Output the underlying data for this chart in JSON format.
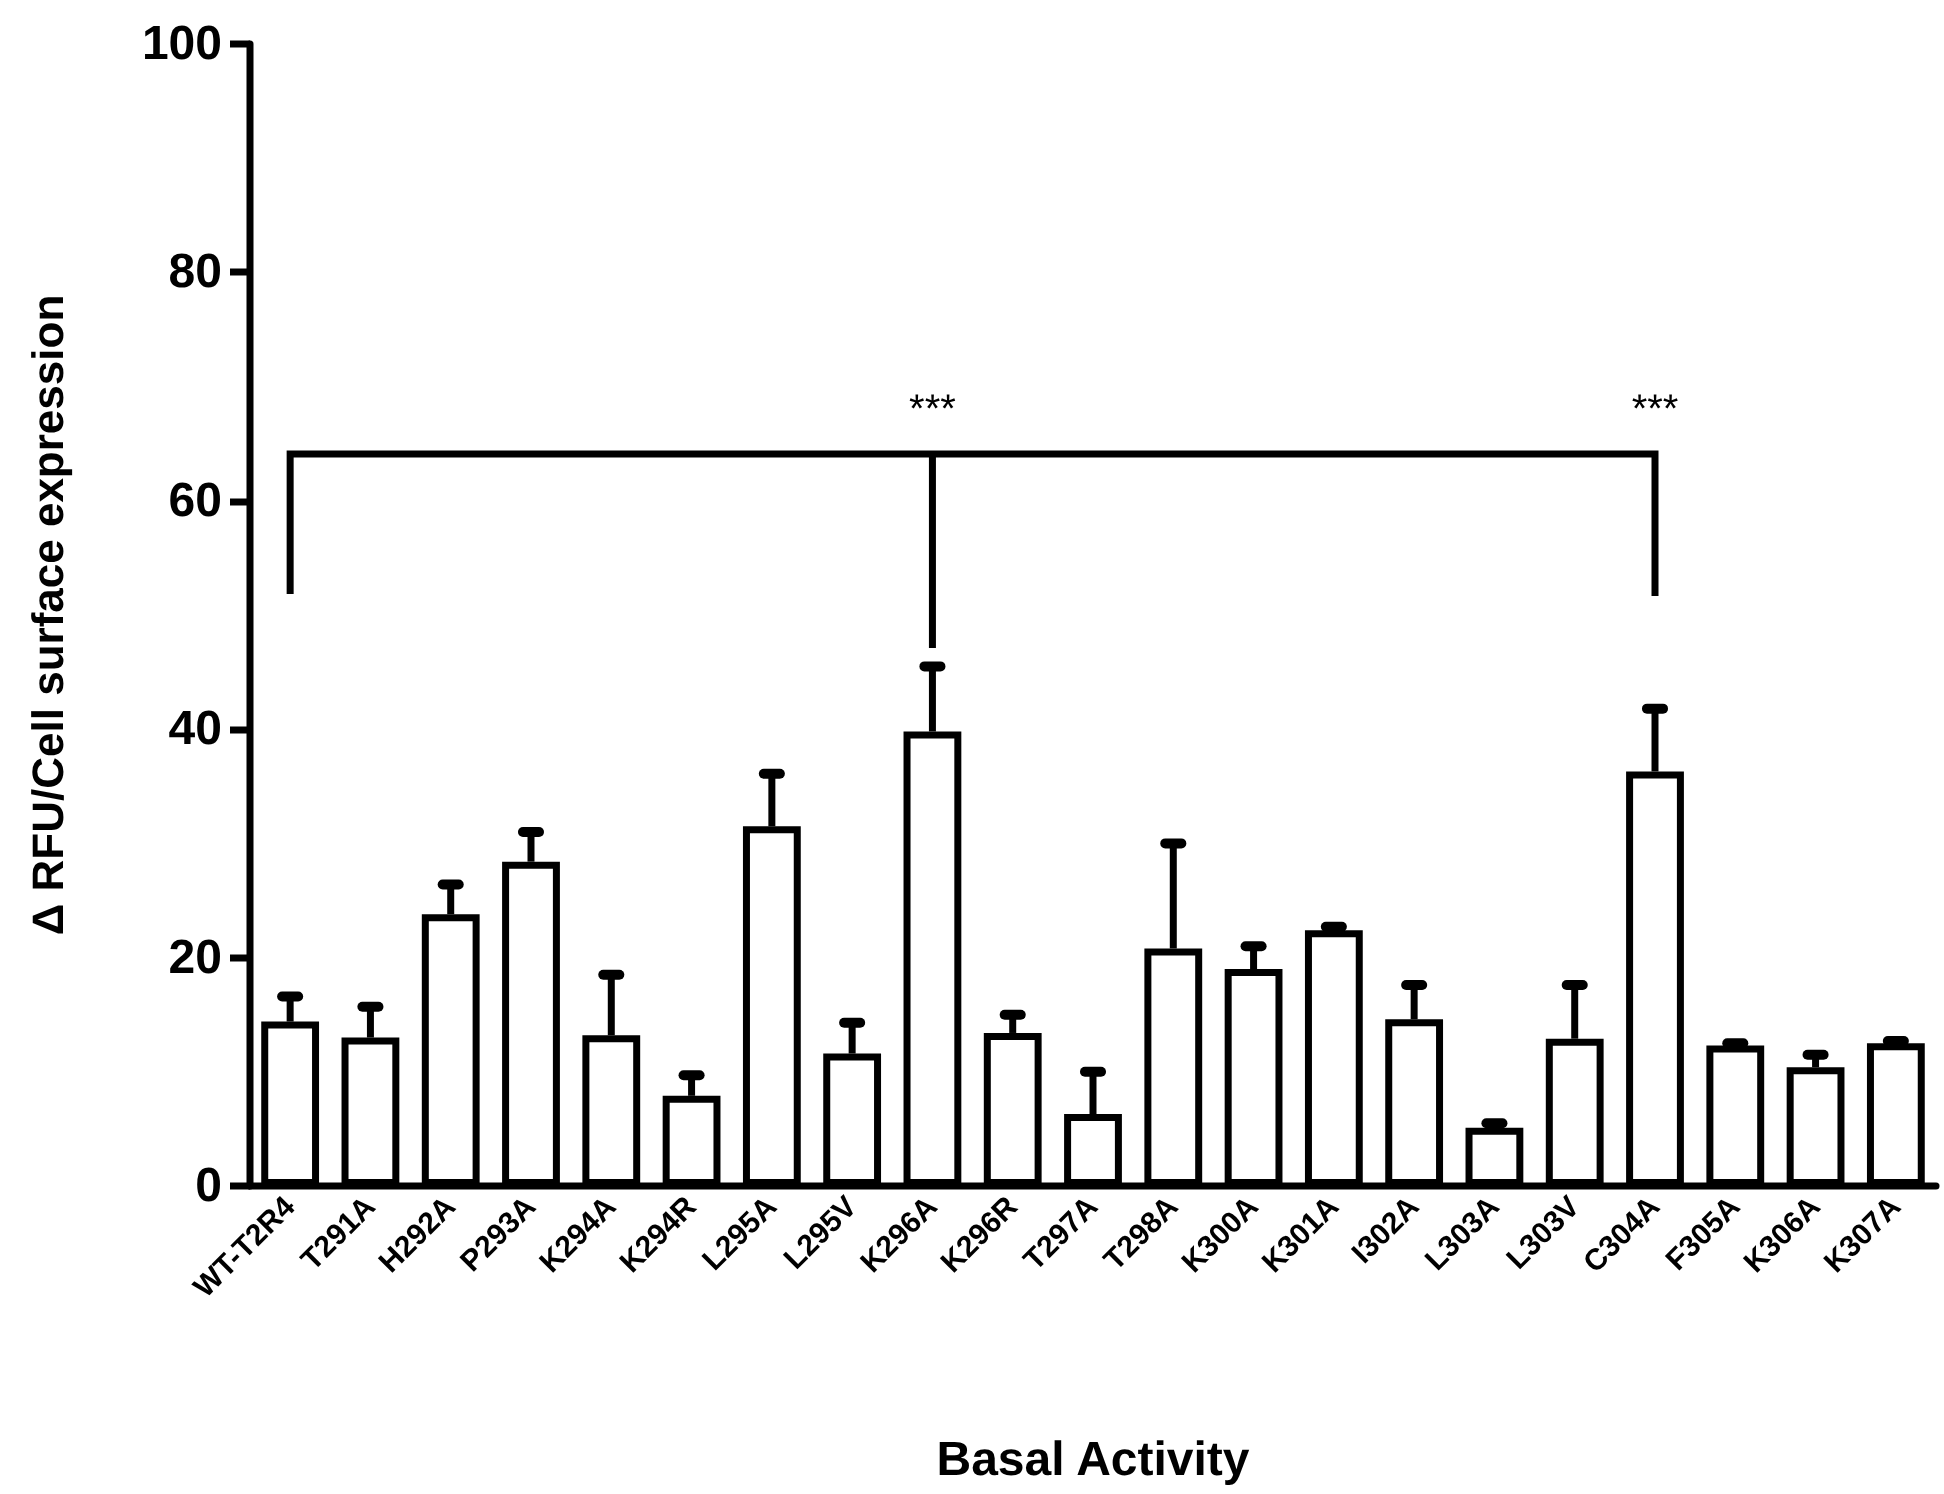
{
  "chart_data": {
    "type": "bar",
    "xlabel": "Basal Activity",
    "ylabel": "Δ RFU/Cell surface expression",
    "categories": [
      "WT-T2R4",
      "T291A",
      "H292A",
      "P293A",
      "K294A",
      "K294R",
      "L295A",
      "L295V",
      "K296A",
      "K296R",
      "T297A",
      "T298A",
      "K300A",
      "K301A",
      "I302A",
      "L303A",
      "L303V",
      "C304A",
      "F305A",
      "K306A",
      "K307A"
    ],
    "values": [
      14.4,
      13.0,
      23.8,
      28.4,
      13.2,
      7.9,
      31.5,
      11.6,
      39.8,
      13.4,
      6.3,
      20.8,
      19.0,
      22.4,
      14.6,
      5.1,
      12.9,
      36.3,
      12.3,
      10.4,
      12.5
    ],
    "errors": [
      [
        14.4,
        16.6
      ],
      [
        13.0,
        15.7
      ],
      [
        23.8,
        26.4
      ],
      [
        28.4,
        31.0
      ],
      [
        13.2,
        18.5
      ],
      [
        7.9,
        9.7
      ],
      [
        31.5,
        36.1
      ],
      [
        11.6,
        14.3
      ],
      [
        39.8,
        45.5
      ],
      [
        13.4,
        15.0
      ],
      [
        6.3,
        10.0
      ],
      [
        20.8,
        30.0
      ],
      [
        19.0,
        21.0
      ],
      [
        22.4,
        22.7
      ],
      [
        14.6,
        17.6
      ],
      [
        5.1,
        5.5
      ],
      [
        12.9,
        17.6
      ],
      [
        36.3,
        41.8
      ],
      [
        12.3,
        12.5
      ],
      [
        10.4,
        11.5
      ],
      [
        12.5,
        12.7
      ]
    ],
    "color": "#ffffff",
    "ylim": [
      0,
      100
    ],
    "yticks": [
      0,
      20,
      40,
      60,
      80,
      100
    ],
    "grid": false,
    "annotations": [
      "***",
      "***"
    ]
  }
}
